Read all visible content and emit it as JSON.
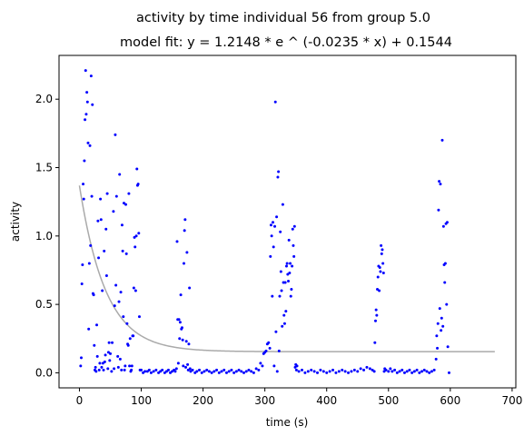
{
  "chart_data": {
    "type": "scatter",
    "title": "activity by time individual 56 from group 5.0",
    "subtitle": "model fit: y = 1.2148 * e ^ (-0.0235 * x) + 0.1544",
    "xlabel": "time (s)",
    "ylabel": "activity",
    "xlim": [
      -33,
      706
    ],
    "ylim": [
      -0.11,
      2.32
    ],
    "xticks": [
      0,
      100,
      200,
      300,
      400,
      500,
      600,
      700
    ],
    "xtick_labels": [
      "0",
      "100",
      "200",
      "300",
      "400",
      "500",
      "600",
      "700"
    ],
    "yticks": [
      0.0,
      0.5,
      1.0,
      1.5,
      2.0
    ],
    "ytick_labels": [
      "0.0",
      "0.5",
      "1.0",
      "1.5",
      "2.0"
    ],
    "grid": false,
    "colors": {
      "points": "#0000ff",
      "fit": "#aaaaaa"
    },
    "fit": {
      "a": 1.2148,
      "b": -0.0235,
      "c": 0.1544,
      "x_range": [
        0,
        672
      ]
    },
    "series": [
      {
        "values": [
          [
            2,
            0.05
          ],
          [
            3,
            0.11
          ],
          [
            4,
            0.65
          ],
          [
            5,
            0.79
          ],
          [
            6,
            1.38
          ],
          [
            7,
            1.27
          ],
          [
            8,
            1.55
          ],
          [
            9,
            1.85
          ],
          [
            10,
            2.21
          ],
          [
            11,
            1.89
          ],
          [
            12,
            2.05
          ],
          [
            13,
            1.98
          ],
          [
            14,
            1.68
          ],
          [
            15,
            0.32
          ],
          [
            16,
            0.8
          ],
          [
            17,
            1.66
          ],
          [
            18,
            0.93
          ],
          [
            19,
            2.17
          ],
          [
            20,
            1.29
          ],
          [
            21,
            1.96
          ],
          [
            22,
            0.58
          ],
          [
            23,
            0.57
          ],
          [
            24,
            0.2
          ],
          [
            25,
            0.02
          ],
          [
            26,
            0.04
          ],
          [
            27,
            0.01
          ],
          [
            28,
            0.35
          ],
          [
            29,
            0.12
          ],
          [
            30,
            1.11
          ],
          [
            31,
            0.84
          ],
          [
            32,
            0.02
          ],
          [
            33,
            0.07
          ],
          [
            34,
            1.27
          ],
          [
            35,
            1.12
          ],
          [
            36,
            0.04
          ],
          [
            37,
            0.6
          ],
          [
            38,
            0.07
          ],
          [
            39,
            0.02
          ],
          [
            40,
            0.89
          ],
          [
            41,
            0.08
          ],
          [
            42,
            0.13
          ],
          [
            43,
            1.05
          ],
          [
            44,
            0.71
          ],
          [
            45,
            1.31
          ],
          [
            46,
            0.03
          ],
          [
            47,
            0.15
          ],
          [
            48,
            0.22
          ],
          [
            49,
            0.09
          ],
          [
            50,
            0.14
          ],
          [
            52,
            0.01
          ],
          [
            53,
            0.22
          ],
          [
            55,
            1.18
          ],
          [
            56,
            0.03
          ],
          [
            57,
            0.49
          ],
          [
            58,
            1.74
          ],
          [
            59,
            0.64
          ],
          [
            60,
            1.29
          ],
          [
            62,
            0.12
          ],
          [
            63,
            0.04
          ],
          [
            64,
            0.52
          ],
          [
            65,
            1.45
          ],
          [
            66,
            0.1
          ],
          [
            67,
            0.59
          ],
          [
            68,
            0.02
          ],
          [
            69,
            1.08
          ],
          [
            70,
            0.89
          ],
          [
            71,
            0.41
          ],
          [
            72,
            1.24
          ],
          [
            73,
            0.02
          ],
          [
            74,
            0.05
          ],
          [
            75,
            1.23
          ],
          [
            76,
            0.87
          ],
          [
            77,
            0.36
          ],
          [
            78,
            0.21
          ],
          [
            79,
            0.2
          ],
          [
            80,
            1.31
          ],
          [
            81,
            0.05
          ],
          [
            82,
            0.25
          ],
          [
            83,
            0.01
          ],
          [
            84,
            0.02
          ],
          [
            85,
            0.05
          ],
          [
            86,
            0.27
          ],
          [
            87,
            0.27
          ],
          [
            88,
            0.62
          ],
          [
            89,
            0.99
          ],
          [
            90,
            0.92
          ],
          [
            91,
            0.6
          ],
          [
            92,
            1.0
          ],
          [
            93,
            1.49
          ],
          [
            94,
            1.37
          ],
          [
            95,
            1.38
          ],
          [
            96,
            1.02
          ],
          [
            97,
            0.41
          ],
          [
            98,
            0.02
          ],
          [
            100,
            0.02
          ],
          [
            103,
            0.0
          ],
          [
            106,
            0.01
          ],
          [
            110,
            0.01
          ],
          [
            113,
            0.02
          ],
          [
            116,
            0.0
          ],
          [
            120,
            0.01
          ],
          [
            124,
            0.02
          ],
          [
            128,
            0.0
          ],
          [
            131,
            0.01
          ],
          [
            134,
            0.02
          ],
          [
            138,
            0.0
          ],
          [
            141,
            0.01
          ],
          [
            144,
            0.02
          ],
          [
            147,
            0.0
          ],
          [
            150,
            0.01
          ],
          [
            153,
            0.02
          ],
          [
            155,
            0.01
          ],
          [
            157,
            0.03
          ],
          [
            158,
            0.96
          ],
          [
            159,
            0.39
          ],
          [
            160,
            0.07
          ],
          [
            161,
            0.39
          ],
          [
            162,
            0.25
          ],
          [
            163,
            0.37
          ],
          [
            164,
            0.57
          ],
          [
            165,
            0.32
          ],
          [
            166,
            0.33
          ],
          [
            167,
            0.24
          ],
          [
            168,
            0.05
          ],
          [
            169,
            0.8
          ],
          [
            170,
            1.04
          ],
          [
            171,
            1.12
          ],
          [
            172,
            0.04
          ],
          [
            173,
            0.23
          ],
          [
            174,
            0.88
          ],
          [
            175,
            0.06
          ],
          [
            176,
            0.02
          ],
          [
            177,
            0.21
          ],
          [
            178,
            0.62
          ],
          [
            179,
            0.03
          ],
          [
            180,
            0.01
          ],
          [
            183,
            0.02
          ],
          [
            187,
            0.0
          ],
          [
            190,
            0.01
          ],
          [
            194,
            0.02
          ],
          [
            198,
            0.0
          ],
          [
            202,
            0.01
          ],
          [
            206,
            0.02
          ],
          [
            210,
            0.01
          ],
          [
            214,
            0.0
          ],
          [
            218,
            0.01
          ],
          [
            222,
            0.02
          ],
          [
            226,
            0.0
          ],
          [
            230,
            0.01
          ],
          [
            234,
            0.02
          ],
          [
            238,
            0.0
          ],
          [
            242,
            0.01
          ],
          [
            246,
            0.02
          ],
          [
            250,
            0.0
          ],
          [
            254,
            0.01
          ],
          [
            258,
            0.02
          ],
          [
            262,
            0.01
          ],
          [
            266,
            0.0
          ],
          [
            270,
            0.01
          ],
          [
            274,
            0.02
          ],
          [
            278,
            0.01
          ],
          [
            282,
            0.0
          ],
          [
            286,
            0.03
          ],
          [
            290,
            0.02
          ],
          [
            293,
            0.07
          ],
          [
            296,
            0.05
          ],
          [
            298,
            0.14
          ],
          [
            300,
            0.15
          ],
          [
            302,
            0.16
          ],
          [
            304,
            0.21
          ],
          [
            306,
            0.22
          ],
          [
            308,
            0.18
          ],
          [
            309,
            0.85
          ],
          [
            310,
            1.08
          ],
          [
            311,
            1.0
          ],
          [
            312,
            0.56
          ],
          [
            313,
            1.1
          ],
          [
            314,
            0.92
          ],
          [
            315,
            0.05
          ],
          [
            316,
            1.07
          ],
          [
            317,
            1.98
          ],
          [
            318,
            0.3
          ],
          [
            319,
            1.14
          ],
          [
            320,
            0.01
          ],
          [
            321,
            1.43
          ],
          [
            322,
            1.47
          ],
          [
            323,
            0.16
          ],
          [
            324,
            0.56
          ],
          [
            325,
            1.03
          ],
          [
            326,
            0.74
          ],
          [
            327,
            0.6
          ],
          [
            328,
            0.34
          ],
          [
            329,
            1.23
          ],
          [
            330,
            0.66
          ],
          [
            331,
            0.42
          ],
          [
            332,
            0.36
          ],
          [
            333,
            0.66
          ],
          [
            334,
            0.45
          ],
          [
            335,
            0.78
          ],
          [
            336,
            0.8
          ],
          [
            337,
            0.72
          ],
          [
            338,
            0.67
          ],
          [
            339,
            0.97
          ],
          [
            340,
            0.73
          ],
          [
            341,
            0.8
          ],
          [
            342,
            0.56
          ],
          [
            343,
            0.61
          ],
          [
            344,
            0.78
          ],
          [
            345,
            1.05
          ],
          [
            346,
            0.93
          ],
          [
            347,
            0.85
          ],
          [
            348,
            1.07
          ],
          [
            349,
            0.04
          ],
          [
            350,
            0.06
          ],
          [
            351,
            0.02
          ],
          [
            352,
            0.05
          ],
          [
            355,
            0.01
          ],
          [
            360,
            0.02
          ],
          [
            365,
            0.0
          ],
          [
            370,
            0.01
          ],
          [
            375,
            0.02
          ],
          [
            380,
            0.01
          ],
          [
            385,
            0.0
          ],
          [
            390,
            0.02
          ],
          [
            395,
            0.01
          ],
          [
            400,
            0.0
          ],
          [
            405,
            0.01
          ],
          [
            410,
            0.02
          ],
          [
            415,
            0.0
          ],
          [
            420,
            0.01
          ],
          [
            425,
            0.02
          ],
          [
            430,
            0.01
          ],
          [
            435,
            0.0
          ],
          [
            440,
            0.01
          ],
          [
            445,
            0.02
          ],
          [
            450,
            0.01
          ],
          [
            455,
            0.03
          ],
          [
            460,
            0.02
          ],
          [
            465,
            0.04
          ],
          [
            470,
            0.03
          ],
          [
            474,
            0.02
          ],
          [
            477,
            0.01
          ],
          [
            478,
            0.22
          ],
          [
            479,
            0.38
          ],
          [
            480,
            0.46
          ],
          [
            481,
            0.42
          ],
          [
            482,
            0.61
          ],
          [
            483,
            0.7
          ],
          [
            484,
            0.78
          ],
          [
            485,
            0.6
          ],
          [
            486,
            0.77
          ],
          [
            487,
            0.74
          ],
          [
            488,
            0.93
          ],
          [
            489,
            0.87
          ],
          [
            490,
            0.9
          ],
          [
            491,
            0.8
          ],
          [
            492,
            0.73
          ],
          [
            493,
            0.01
          ],
          [
            494,
            0.03
          ],
          [
            496,
            0.02
          ],
          [
            500,
            0.01
          ],
          [
            503,
            0.03
          ],
          [
            506,
            0.01
          ],
          [
            510,
            0.02
          ],
          [
            514,
            0.0
          ],
          [
            518,
            0.01
          ],
          [
            522,
            0.02
          ],
          [
            526,
            0.0
          ],
          [
            530,
            0.01
          ],
          [
            534,
            0.02
          ],
          [
            538,
            0.0
          ],
          [
            542,
            0.01
          ],
          [
            546,
            0.02
          ],
          [
            550,
            0.0
          ],
          [
            554,
            0.01
          ],
          [
            558,
            0.02
          ],
          [
            562,
            0.01
          ],
          [
            566,
            0.0
          ],
          [
            570,
            0.01
          ],
          [
            574,
            0.02
          ],
          [
            577,
            0.1
          ],
          [
            578,
            0.27
          ],
          [
            579,
            0.18
          ],
          [
            580,
            0.36
          ],
          [
            581,
            1.19
          ],
          [
            582,
            1.4
          ],
          [
            583,
            0.47
          ],
          [
            584,
            1.38
          ],
          [
            585,
            0.31
          ],
          [
            586,
            0.4
          ],
          [
            587,
            1.7
          ],
          [
            588,
            0.34
          ],
          [
            589,
            1.07
          ],
          [
            590,
            0.79
          ],
          [
            591,
            0.66
          ],
          [
            592,
            0.8
          ],
          [
            593,
            1.09
          ],
          [
            594,
            0.5
          ],
          [
            595,
            1.1
          ],
          [
            596,
            0.19
          ],
          [
            598,
            0.0
          ]
        ]
      }
    ]
  }
}
